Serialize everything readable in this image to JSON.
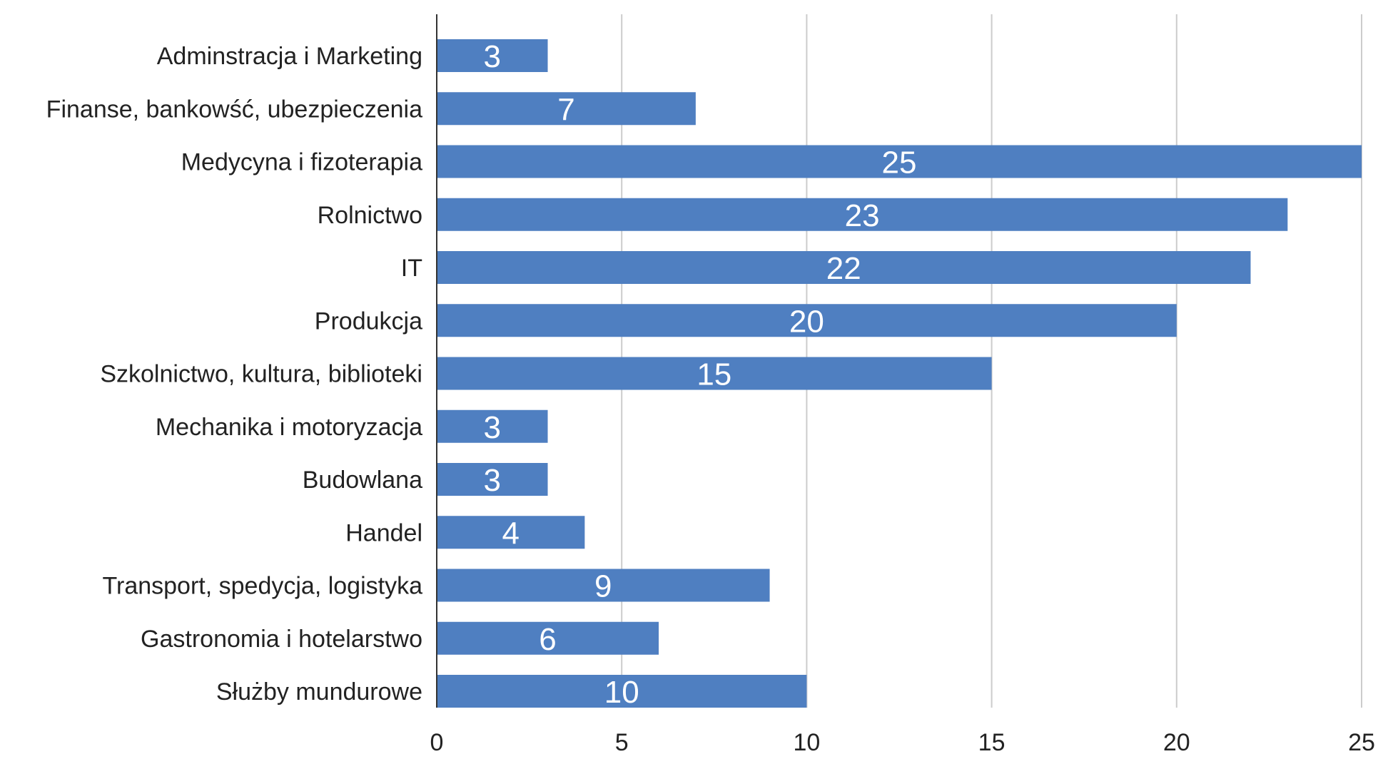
{
  "chart_data": {
    "type": "bar",
    "orientation": "horizontal",
    "title": "",
    "xlabel": "",
    "ylabel": "",
    "categories": [
      "Adminstracja i Marketing",
      "Finanse, bankowść, ubezpieczenia",
      "Medycyna i fizoterapia",
      "Rolnictwo",
      "IT",
      "Produkcja",
      "Szkolnictwo, kultura, biblioteki",
      "Mechanika i motoryzacja",
      "Budowlana",
      "Handel",
      "Transport, spedycja, logistyka",
      "Gastronomia i hotelarstwo",
      "Służby mundurowe"
    ],
    "values": [
      3,
      7,
      25,
      23,
      22,
      20,
      15,
      3,
      3,
      4,
      9,
      6,
      10
    ],
    "xlim": [
      0,
      25
    ],
    "xticks": [
      0,
      5,
      10,
      15,
      20,
      25
    ],
    "grid": true,
    "legend": "none",
    "bar_color": "#4f7fc1",
    "grid_color": "#cccccc",
    "axis_color": "#333333",
    "data_label_color": "#ffffff"
  }
}
